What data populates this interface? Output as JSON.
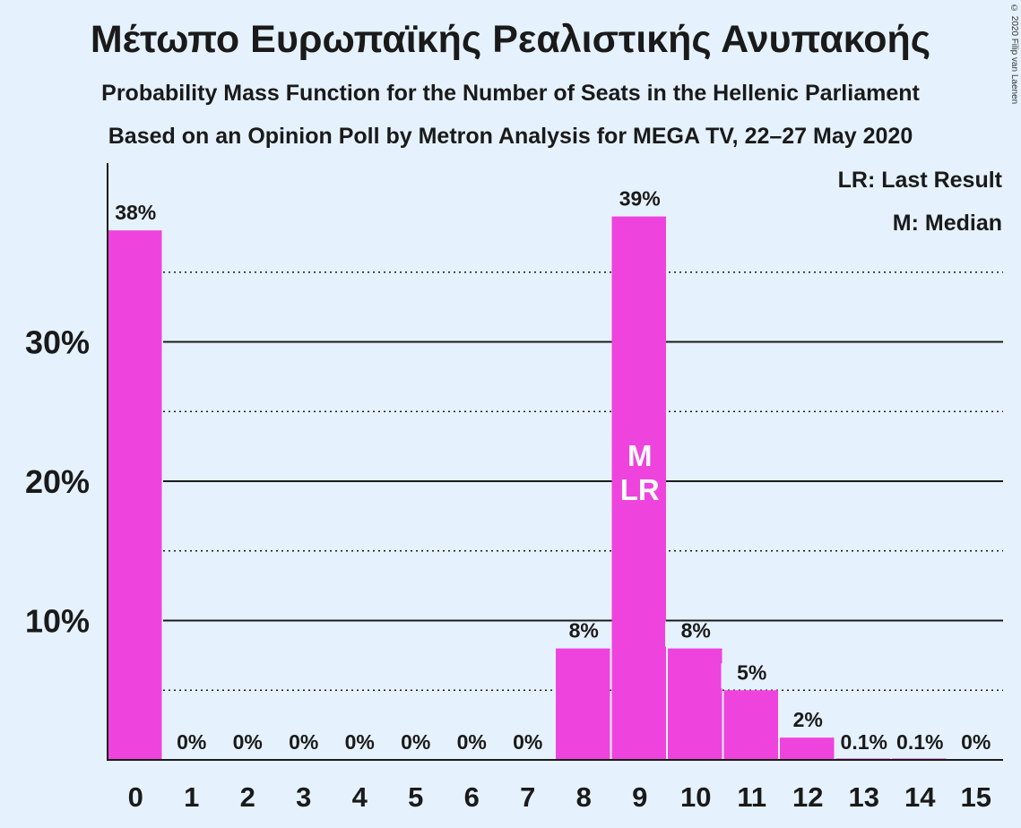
{
  "title": "Μέτωπο Ευρωπαϊκής Ρεαλιστικής Ανυπακοής",
  "subtitle1": "Probability Mass Function for the Number of Seats in the Hellenic Parliament",
  "subtitle2": "Based on an Opinion Poll by Metron Analysis for MEGA TV, 22–27 May 2020",
  "copyright": "© 2020 Filip van Laenen",
  "legend": {
    "lr": "LR: Last Result",
    "m": "M: Median"
  },
  "colors": {
    "bar": "#ee44dd",
    "background": "#e5f2fd",
    "text": "#1a1a1a"
  },
  "chart_data": {
    "type": "bar",
    "categories": [
      "0",
      "1",
      "2",
      "3",
      "4",
      "5",
      "6",
      "7",
      "8",
      "9",
      "10",
      "11",
      "12",
      "13",
      "14",
      "15"
    ],
    "values": [
      38,
      0,
      0,
      0,
      0,
      0,
      0,
      0,
      8,
      39,
      8,
      5,
      1.6,
      0.1,
      0.1,
      0
    ],
    "labels": [
      "38%",
      "0%",
      "0%",
      "0%",
      "0%",
      "0%",
      "0%",
      "0%",
      "8%",
      "39%",
      "8%",
      "5%",
      "2%",
      "0.1%",
      "0.1%",
      "0%"
    ],
    "yticks": [
      "10%",
      "20%",
      "30%"
    ],
    "ytick_values": [
      10,
      20,
      30
    ],
    "minor_gridlines": [
      5,
      15,
      25,
      35
    ],
    "ylim": [
      0,
      42
    ],
    "median_index": 9,
    "last_result_index": 9,
    "median_mark": "M",
    "last_result_mark": "LR",
    "legend_position": "top-right"
  }
}
